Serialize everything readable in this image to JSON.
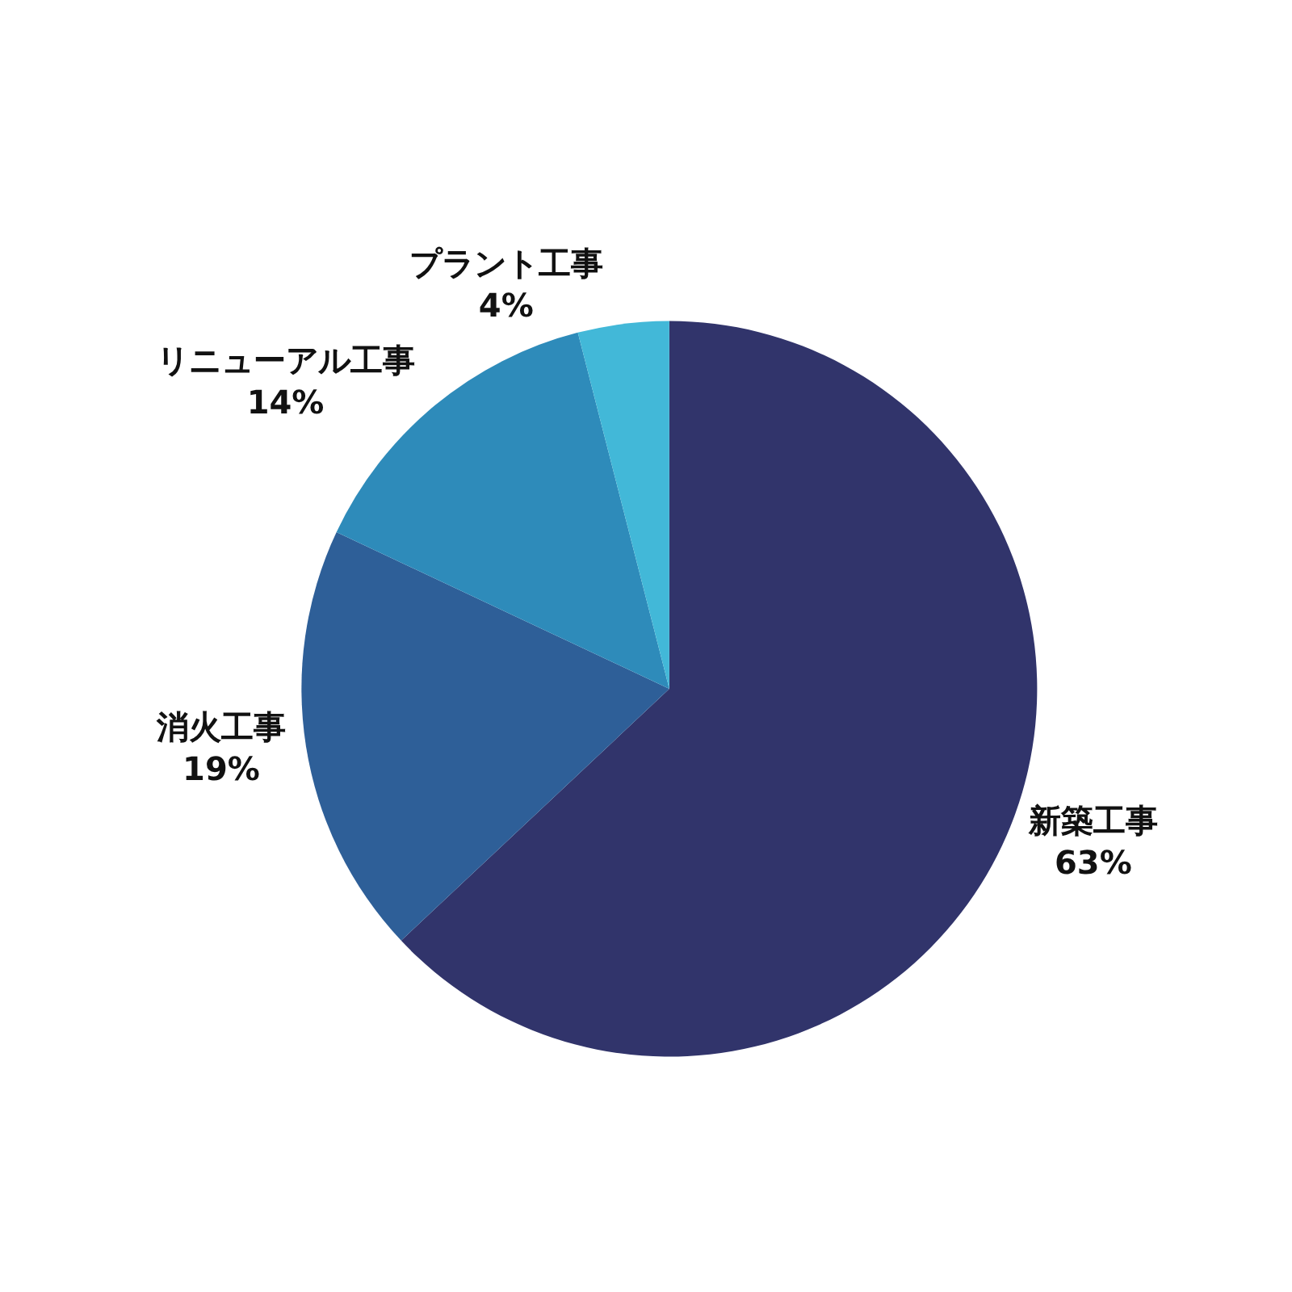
{
  "chart_data": {
    "type": "pie",
    "categories": [
      "新築工事",
      "消火工事",
      "リニューアル工事",
      "プラント工事"
    ],
    "values": [
      63,
      19,
      14,
      4
    ],
    "value_labels": [
      "63%",
      "19%",
      "14%",
      "4%"
    ],
    "colors": [
      "#31346b",
      "#2e5f98",
      "#2e8bba",
      "#42b8d8"
    ],
    "legend": false
  }
}
